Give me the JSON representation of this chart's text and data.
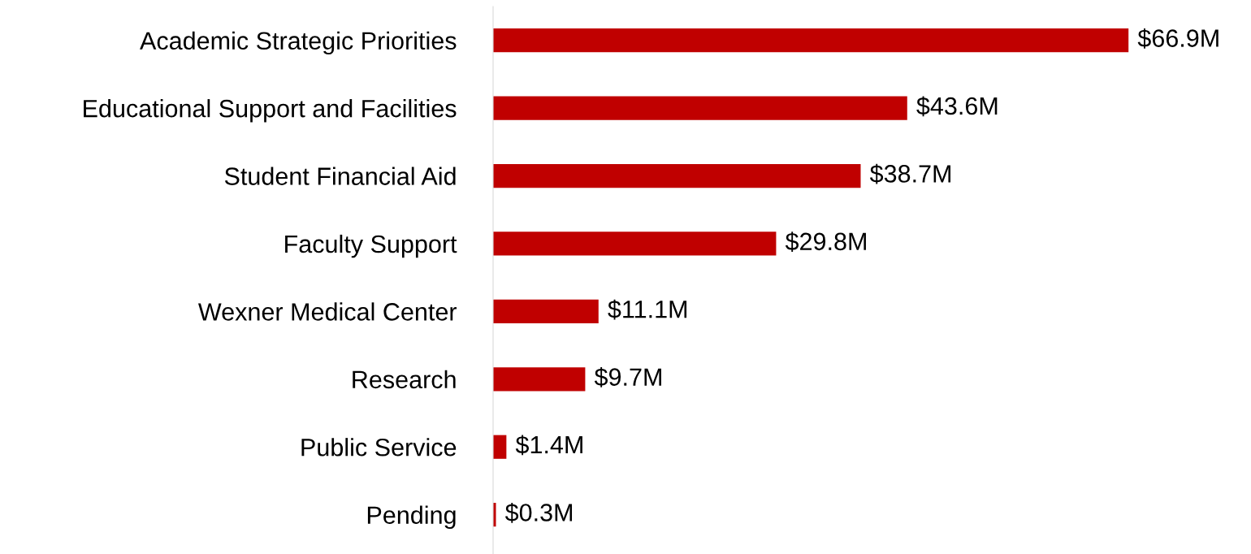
{
  "chart_data": {
    "type": "bar",
    "orientation": "horizontal",
    "categories": [
      "Academic Strategic Priorities",
      "Educational Support and Facilities",
      "Student Financial Aid",
      "Faculty Support",
      "Wexner Medical Center",
      "Research",
      "Public Service",
      "Pending"
    ],
    "values": [
      66.9,
      43.6,
      38.7,
      29.8,
      11.1,
      9.7,
      1.4,
      0.3
    ],
    "value_labels": [
      "$66.9M",
      "$43.6M",
      "$38.7M",
      "$29.8M",
      "$11.1M",
      "$9.7M",
      "$1.4M",
      "$0.3M"
    ],
    "color": "#c00000",
    "grid": false,
    "legend": false
  }
}
